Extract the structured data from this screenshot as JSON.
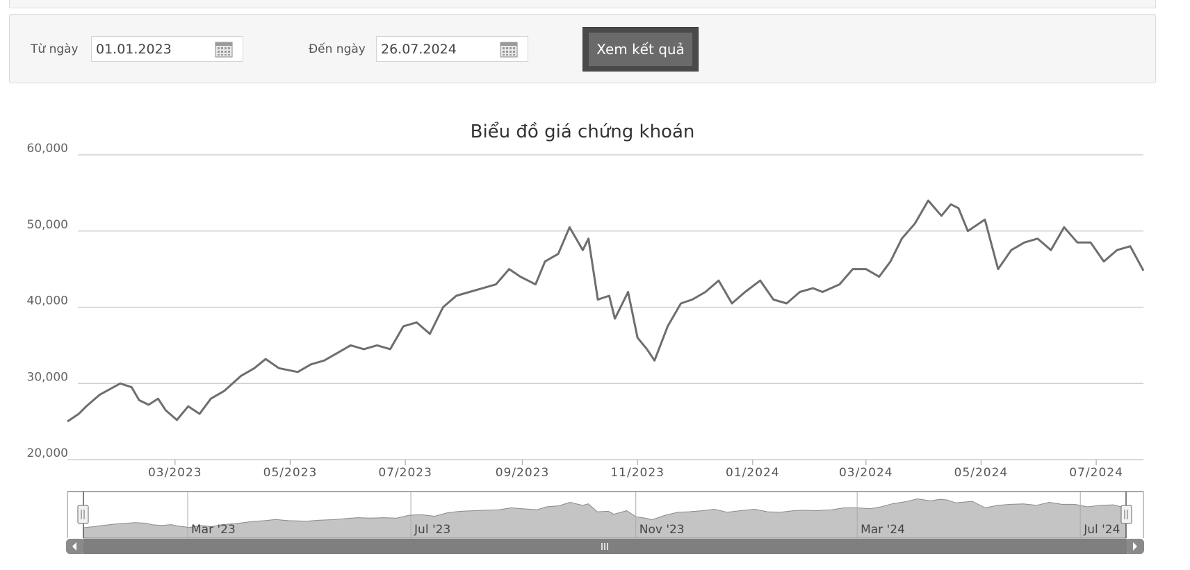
{
  "filter": {
    "from_label": "Từ ngày",
    "from_value": "01.01.2023",
    "to_label": "Đến ngày",
    "to_value": "26.07.2024",
    "submit_label": "Xem kết quả"
  },
  "colors": {
    "line": "#6e6e6e",
    "grid": "#c8c8c8",
    "navigator_fill": "#c4c4c4",
    "scrollbar": "#7f7f7f"
  },
  "chart_data": {
    "type": "line",
    "title": "Biểu đồ giá chứng khoán",
    "ylim": [
      20000,
      60000
    ],
    "yticks": [
      "20,000",
      "30,000",
      "40,000",
      "50,000",
      "60,000"
    ],
    "x_ticks": [
      {
        "date": "2023-03-01",
        "label": "03/2023"
      },
      {
        "date": "2023-05-01",
        "label": "05/2023"
      },
      {
        "date": "2023-07-01",
        "label": "07/2023"
      },
      {
        "date": "2023-09-01",
        "label": "09/2023"
      },
      {
        "date": "2023-11-01",
        "label": "11/2023"
      },
      {
        "date": "2024-01-01",
        "label": "01/2024"
      },
      {
        "date": "2024-03-01",
        "label": "03/2024"
      },
      {
        "date": "2024-05-01",
        "label": "05/2024"
      },
      {
        "date": "2024-07-01",
        "label": "07/2024"
      }
    ],
    "navigator_ticks": [
      {
        "date": "2023-03-01",
        "label": "Mar '23"
      },
      {
        "date": "2023-07-01",
        "label": "Jul '23"
      },
      {
        "date": "2023-11-01",
        "label": "Nov '23"
      },
      {
        "date": "2024-03-01",
        "label": "Mar '24"
      },
      {
        "date": "2024-07-01",
        "label": "Jul '24"
      }
    ],
    "grid": true,
    "legend": "none",
    "series": [
      {
        "x": [
          "2023-01-03",
          "2023-01-09",
          "2023-01-13",
          "2023-01-20",
          "2023-01-31",
          "2023-02-06",
          "2023-02-10",
          "2023-02-15",
          "2023-02-20",
          "2023-02-24",
          "2023-03-02",
          "2023-03-08",
          "2023-03-14",
          "2023-03-20",
          "2023-03-27",
          "2023-04-05",
          "2023-04-12",
          "2023-04-18",
          "2023-04-25",
          "2023-05-05",
          "2023-05-12",
          "2023-05-19",
          "2023-05-26",
          "2023-06-02",
          "2023-06-09",
          "2023-06-16",
          "2023-06-23",
          "2023-06-30",
          "2023-07-07",
          "2023-07-14",
          "2023-07-21",
          "2023-07-28",
          "2023-08-04",
          "2023-08-11",
          "2023-08-18",
          "2023-08-25",
          "2023-08-31",
          "2023-09-08",
          "2023-09-13",
          "2023-09-20",
          "2023-09-26",
          "2023-10-03",
          "2023-10-06",
          "2023-10-11",
          "2023-10-17",
          "2023-10-20",
          "2023-10-27",
          "2023-11-01",
          "2023-11-06",
          "2023-11-10",
          "2023-11-17",
          "2023-11-24",
          "2023-11-30",
          "2023-12-07",
          "2023-12-14",
          "2023-12-21",
          "2023-12-28",
          "2024-01-05",
          "2024-01-12",
          "2024-01-19",
          "2024-01-26",
          "2024-02-02",
          "2024-02-07",
          "2024-02-16",
          "2024-02-23",
          "2024-03-01",
          "2024-03-08",
          "2024-03-14",
          "2024-03-20",
          "2024-03-27",
          "2024-04-03",
          "2024-04-10",
          "2024-04-15",
          "2024-04-19",
          "2024-04-24",
          "2024-05-03",
          "2024-05-10",
          "2024-05-17",
          "2024-05-24",
          "2024-05-31",
          "2024-06-07",
          "2024-06-14",
          "2024-06-21",
          "2024-06-28",
          "2024-07-05",
          "2024-07-12",
          "2024-07-19",
          "2024-07-26"
        ],
        "values": [
          25000,
          26000,
          27000,
          28500,
          30000,
          29500,
          27800,
          27200,
          28000,
          26500,
          25200,
          27000,
          26000,
          28000,
          29000,
          31000,
          32000,
          33200,
          32000,
          31500,
          32500,
          33000,
          34000,
          35000,
          34500,
          35000,
          34500,
          37500,
          38000,
          36500,
          40000,
          41500,
          42000,
          42500,
          43000,
          45000,
          44000,
          43000,
          46000,
          47000,
          50500,
          47500,
          49000,
          41000,
          41500,
          38500,
          42000,
          36000,
          34500,
          33000,
          37500,
          40500,
          41000,
          42000,
          43500,
          40500,
          42000,
          43500,
          41000,
          40500,
          42000,
          42500,
          42000,
          43000,
          45000,
          45000,
          44000,
          46000,
          49000,
          51000,
          54000,
          52000,
          53500,
          53000,
          50000,
          51500,
          45000,
          47500,
          48500,
          49000,
          47500,
          50500,
          48500,
          48500,
          46000,
          47500,
          48000,
          44800
        ]
      }
    ]
  }
}
